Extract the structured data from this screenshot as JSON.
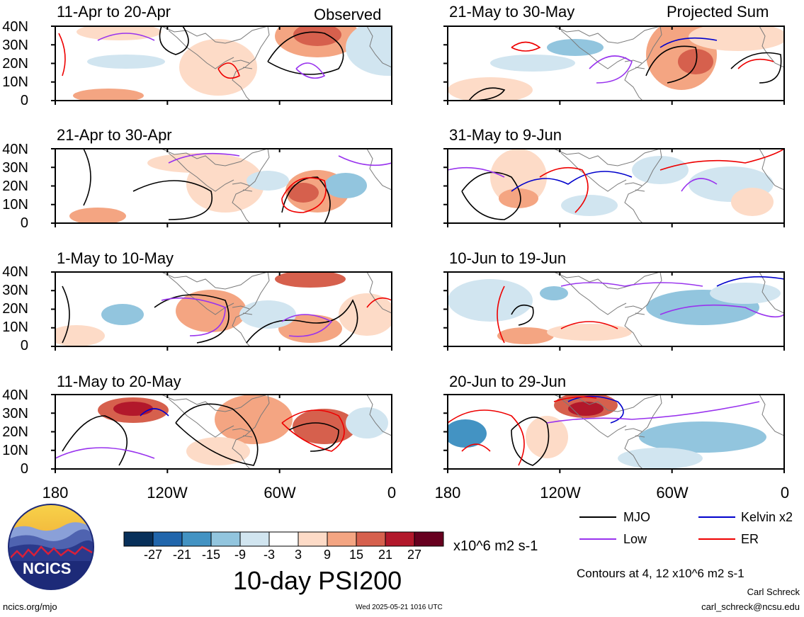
{
  "figure": {
    "main_title": "10-day PSI200",
    "corner_labels": {
      "left": "Observed",
      "right": "Projected Sum"
    },
    "latitude_ticks": [
      "40N",
      "30N",
      "20N",
      "10N",
      "0"
    ],
    "longitude_ticks": [
      "180",
      "120W",
      "60W",
      "0"
    ],
    "panels_observed": [
      {
        "title": "11-Apr to 20-Apr"
      },
      {
        "title": "21-Apr to 30-Apr"
      },
      {
        "title": "1-May to 10-May"
      },
      {
        "title": "11-May to 20-May"
      }
    ],
    "panels_projected": [
      {
        "title": "21-May to 30-May"
      },
      {
        "title": "31-May to 9-Jun"
      },
      {
        "title": "10-Jun to 19-Jun"
      },
      {
        "title": "20-Jun to 29-Jun"
      }
    ]
  },
  "colorbar": {
    "ticks": [
      "-27",
      "-21",
      "-15",
      "-9",
      "-3",
      "3",
      "9",
      "15",
      "21",
      "27"
    ],
    "colors": [
      "#08305a",
      "#2166ac",
      "#4393c3",
      "#92c5de",
      "#d1e5f0",
      "#ffffff",
      "#fddbc7",
      "#f4a582",
      "#d6604d",
      "#b2182b",
      "#67001f"
    ],
    "units": "x10^6 m2 s-1"
  },
  "legend": {
    "items": [
      {
        "label": "MJO",
        "color": "#000000"
      },
      {
        "label": "Kelvin x2",
        "color": "#0000cc"
      },
      {
        "label": "Low",
        "color": "#9933ee"
      },
      {
        "label": "ER",
        "color": "#ee0000"
      }
    ],
    "contours_note": "Contours at 4, 12 x10^6 m2 s-1"
  },
  "logo": {
    "text": "NCICS"
  },
  "footer": {
    "url": "ncics.org/mjo",
    "timestamp": "Wed 2025-05-21 1016 UTC",
    "author": "Carl Schreck",
    "email": "carl_schreck@ncsu.edu"
  }
}
